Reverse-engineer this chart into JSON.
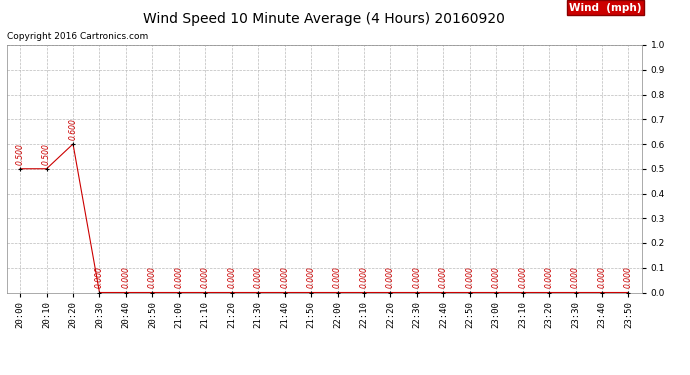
{
  "title": "Wind Speed 10 Minute Average (4 Hours) 20160920",
  "copyright": "Copyright 2016 Cartronics.com",
  "legend_label": "Wind  (mph)",
  "line_color": "#cc0000",
  "background_color": "#ffffff",
  "grid_color": "#bbbbbb",
  "ylim": [
    0.0,
    1.0
  ],
  "yticks": [
    0.0,
    0.1,
    0.2,
    0.3,
    0.4,
    0.5,
    0.6,
    0.7,
    0.8,
    0.9,
    1.0
  ],
  "x_labels": [
    "20:00",
    "20:10",
    "20:20",
    "20:30",
    "20:40",
    "20:50",
    "21:00",
    "21:10",
    "21:20",
    "21:30",
    "21:40",
    "21:50",
    "22:00",
    "22:10",
    "22:20",
    "22:30",
    "22:40",
    "22:50",
    "23:00",
    "23:10",
    "23:20",
    "23:30",
    "23:40",
    "23:50"
  ],
  "values": [
    0.5,
    0.5,
    0.6,
    0.0,
    0.0,
    0.0,
    0.0,
    0.0,
    0.0,
    0.0,
    0.0,
    0.0,
    0.0,
    0.0,
    0.0,
    0.0,
    0.0,
    0.0,
    0.0,
    0.0,
    0.0,
    0.0,
    0.0,
    0.0
  ],
  "title_fontsize": 10,
  "label_fontsize": 6.5,
  "copyright_fontsize": 6.5,
  "legend_fontsize": 7.5,
  "annotation_fontsize": 5.5
}
